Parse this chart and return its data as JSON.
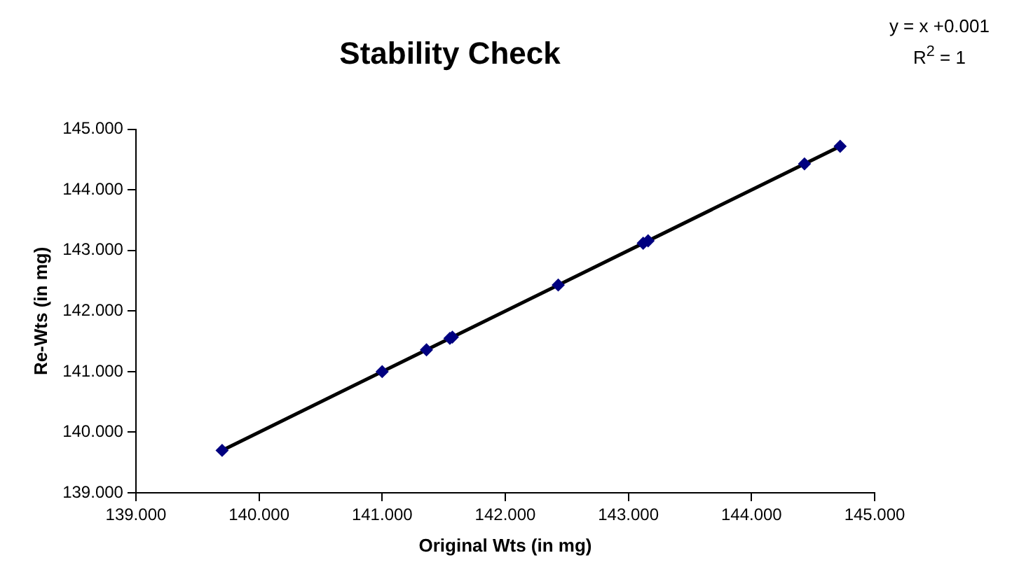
{
  "chart_data": {
    "type": "scatter",
    "title": "Stability Check",
    "xlabel": "Original Wts (in mg)",
    "ylabel": "Re-Wts (in mg)",
    "annotations": [
      "y = x +0.001",
      "R$^{2}$ = 1"
    ],
    "xlim": [
      139,
      145
    ],
    "xticks": [
      {
        "value": 139,
        "label": "139.000"
      },
      {
        "value": 140,
        "label": "140.000"
      },
      {
        "value": 141,
        "label": "141.000"
      },
      {
        "value": 142,
        "label": "142.000"
      },
      {
        "value": 143,
        "label": "143.000"
      },
      {
        "value": 144,
        "label": "144.000"
      },
      {
        "value": 145,
        "label": "145.000"
      }
    ],
    "ylim": [
      139,
      145
    ],
    "yticks": [
      {
        "value": 139,
        "label": "139.000"
      },
      {
        "value": 140,
        "label": "140.000"
      },
      {
        "value": 141,
        "label": "141.000"
      },
      {
        "value": 142,
        "label": "142.000"
      },
      {
        "value": 143,
        "label": "143.000"
      },
      {
        "value": 144,
        "label": "144.000"
      },
      {
        "value": 145,
        "label": "145.000"
      }
    ],
    "grid": false,
    "legend": false,
    "marker": "diamond",
    "series": [
      {
        "type": "scatter",
        "color": "#000080",
        "x": [
          139.7,
          141.0,
          141.36,
          141.55,
          141.57,
          142.43,
          143.12,
          143.16,
          144.43,
          144.72
        ],
        "values": [
          139.7,
          141.0,
          141.36,
          141.55,
          141.57,
          142.43,
          143.12,
          143.16,
          144.43,
          144.72
        ]
      },
      {
        "type": "line",
        "color": "#000000",
        "marker": "none",
        "line_style": "solid",
        "x": [
          139.7,
          144.72
        ],
        "values": [
          139.7,
          144.72
        ]
      }
    ]
  }
}
